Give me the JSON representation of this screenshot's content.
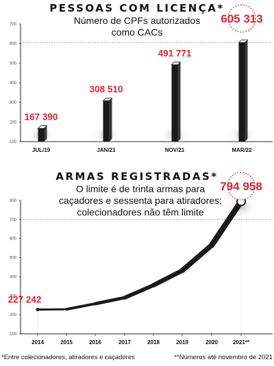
{
  "chart1": {
    "title": "PESSOAS COM LICENÇA*",
    "subtitle_line1": "Número de CPFs autorizados",
    "subtitle_line2": "como CACs",
    "chart_data": {
      "type": "bar",
      "categories": [
        "JUL/19",
        "JAN/21",
        "NOV/21",
        "MAR/22"
      ],
      "values": [
        167390,
        308510,
        491771,
        605313
      ],
      "value_labels": [
        "167 390",
        "308 510",
        "491 771",
        "605 313"
      ],
      "yticks": [
        100,
        200,
        300,
        400,
        500,
        600,
        700
      ],
      "ylim": [
        100,
        700
      ],
      "highlight_index": 3,
      "reference_line": 605313
    }
  },
  "chart2": {
    "title": "ARMAS REGISTRADAS*",
    "subtitle_line1": "O limite é de trinta armas para",
    "subtitle_line2": "caçadores e sessenta para atiradores;",
    "subtitle_line3": "colecionadores não têm limite",
    "chart_data": {
      "type": "line",
      "x": [
        "2014",
        "2015",
        "2016",
        "2017",
        "2018",
        "2019",
        "2020",
        "2021**"
      ],
      "values": [
        227242,
        229000,
        258000,
        290000,
        355000,
        432000,
        565000,
        794958
      ],
      "point_labels": {
        "0": "227 242",
        "7": "794 958"
      },
      "yticks": [
        100,
        200,
        300,
        400,
        500,
        600,
        700,
        800
      ],
      "ylim": [
        100,
        800
      ],
      "reference_line": 700000
    }
  },
  "footnotes": {
    "left": "*Entre colecionadores, atiradores e caçadores",
    "right": "**Números até novembro de 2021"
  },
  "colors": {
    "accent": "#d7262e",
    "bar": "#1a1a1a",
    "axis": "#222222",
    "grid": "#555555"
  }
}
